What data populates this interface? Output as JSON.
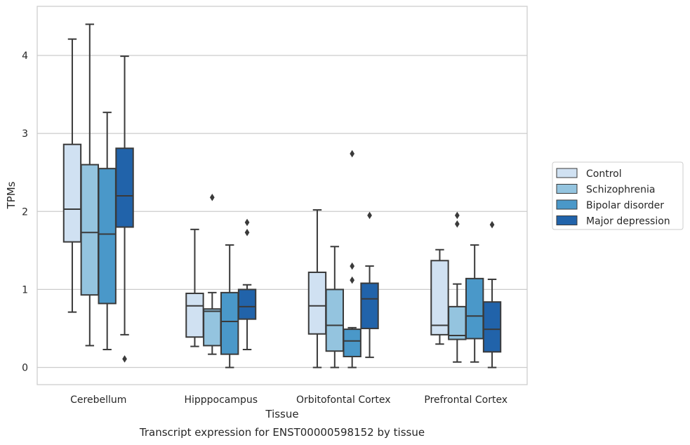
{
  "chart_data": {
    "type": "box",
    "caption": "Transcript expression for ENST00000598152 by tissue",
    "xlabel": "Tissue",
    "ylabel": "TPMs",
    "ylim": [
      -0.22,
      4.63
    ],
    "yticks": [
      0,
      1,
      2,
      3,
      4
    ],
    "grid": "horizontal",
    "legend_position": "right",
    "categories": [
      "Cerebellum",
      "Hipppocampus",
      "Orbitofontal Cortex",
      "Prefrontal Cortex"
    ],
    "series": [
      {
        "name": "Control",
        "color": "#d0e1f2",
        "boxes": [
          {
            "whisker_low": 0.71,
            "q1": 1.61,
            "median": 2.03,
            "q3": 2.86,
            "whisker_high": 4.21,
            "outliers": []
          },
          {
            "whisker_low": 0.27,
            "q1": 0.39,
            "median": 0.79,
            "q3": 0.95,
            "whisker_high": 1.77,
            "outliers": []
          },
          {
            "whisker_low": 0.0,
            "q1": 0.43,
            "median": 0.79,
            "q3": 1.22,
            "whisker_high": 2.02,
            "outliers": []
          },
          {
            "whisker_low": 0.3,
            "q1": 0.42,
            "median": 0.54,
            "q3": 1.37,
            "whisker_high": 1.51,
            "outliers": []
          }
        ]
      },
      {
        "name": "Schizophrenia",
        "color": "#94c4df",
        "boxes": [
          {
            "whisker_low": 0.28,
            "q1": 0.93,
            "median": 1.73,
            "q3": 2.6,
            "whisker_high": 4.4,
            "outliers": []
          },
          {
            "whisker_low": 0.17,
            "q1": 0.28,
            "median": 0.72,
            "q3": 0.75,
            "whisker_high": 0.96,
            "outliers": [
              2.18
            ]
          },
          {
            "whisker_low": 0.0,
            "q1": 0.21,
            "median": 0.54,
            "q3": 1.0,
            "whisker_high": 1.55,
            "outliers": []
          },
          {
            "whisker_low": 0.07,
            "q1": 0.36,
            "median": 0.41,
            "q3": 0.78,
            "whisker_high": 1.07,
            "outliers": [
              1.95,
              1.84
            ]
          }
        ]
      },
      {
        "name": "Bipolar disorder",
        "color": "#4a98c9",
        "boxes": [
          {
            "whisker_low": 0.23,
            "q1": 0.82,
            "median": 1.71,
            "q3": 2.55,
            "whisker_high": 3.27,
            "outliers": []
          },
          {
            "whisker_low": 0.0,
            "q1": 0.17,
            "median": 0.59,
            "q3": 0.96,
            "whisker_high": 1.57,
            "outliers": []
          },
          {
            "whisker_low": 0.0,
            "q1": 0.14,
            "median": 0.34,
            "q3": 0.49,
            "whisker_high": 0.51,
            "outliers": [
              2.74,
              1.3,
              1.12
            ]
          },
          {
            "whisker_low": 0.07,
            "q1": 0.37,
            "median": 0.66,
            "q3": 1.14,
            "whisker_high": 1.57,
            "outliers": []
          }
        ]
      },
      {
        "name": "Major depression",
        "color": "#2163aa",
        "boxes": [
          {
            "whisker_low": 0.42,
            "q1": 1.8,
            "median": 2.2,
            "q3": 2.81,
            "whisker_high": 3.99,
            "outliers": [
              0.11
            ]
          },
          {
            "whisker_low": 0.23,
            "q1": 0.62,
            "median": 0.78,
            "q3": 1.0,
            "whisker_high": 1.06,
            "outliers": [
              1.86,
              1.73
            ]
          },
          {
            "whisker_low": 0.13,
            "q1": 0.5,
            "median": 0.88,
            "q3": 1.08,
            "whisker_high": 1.3,
            "outliers": [
              1.95
            ]
          },
          {
            "whisker_low": 0.0,
            "q1": 0.2,
            "median": 0.49,
            "q3": 0.84,
            "whisker_high": 1.13,
            "outliers": [
              1.83
            ]
          }
        ]
      }
    ]
  }
}
